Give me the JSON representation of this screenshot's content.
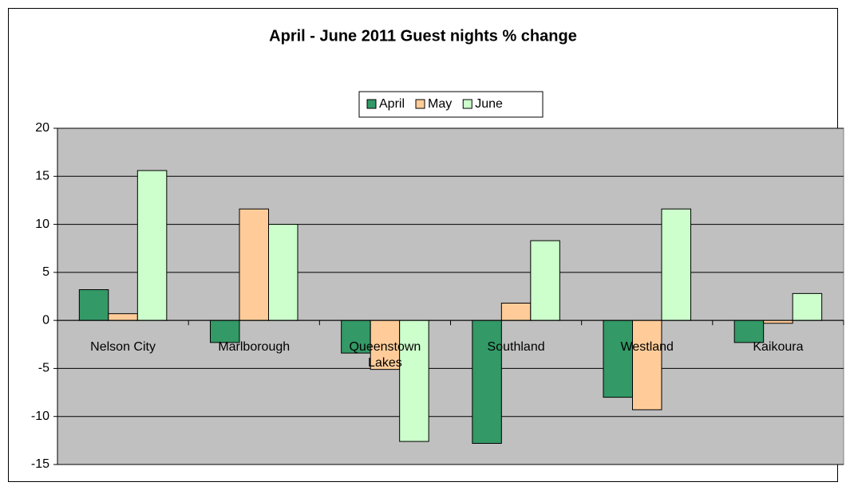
{
  "chart_data": {
    "type": "bar",
    "title": "April - June 2011 Guest nights % change",
    "categories": [
      "Nelson City",
      "Marlborough",
      "Queenstown Lakes",
      "Southland",
      "Westland",
      "Kaikoura"
    ],
    "series": [
      {
        "name": "April",
        "color": "#339966",
        "values": [
          3.2,
          -2.3,
          -3.4,
          -12.8,
          -8.0,
          -2.3
        ]
      },
      {
        "name": "May",
        "color": "#ffcc99",
        "values": [
          0.7,
          11.6,
          -5.1,
          1.8,
          -9.3,
          -0.3
        ]
      },
      {
        "name": "June",
        "color": "#ccffcc",
        "values": [
          15.6,
          10.0,
          -12.6,
          8.3,
          11.6,
          2.8
        ]
      }
    ],
    "ylim": [
      -15,
      20
    ],
    "yticks": [
      -15,
      -10,
      -5,
      0,
      5,
      10,
      15,
      20
    ],
    "grid": true,
    "legend": "top"
  }
}
